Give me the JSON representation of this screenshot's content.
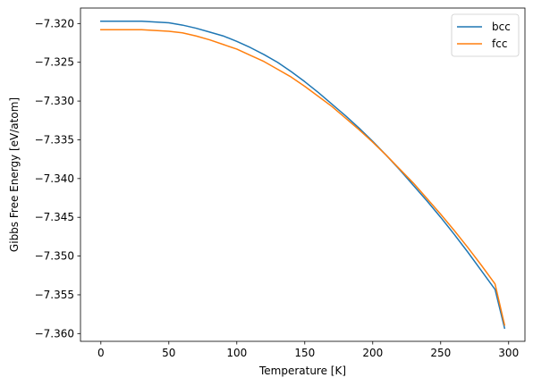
{
  "chart_data": {
    "type": "line",
    "title": "",
    "xlabel": "Temperature [K]",
    "ylabel": "Gibbs Free Energy [eV/atom]",
    "xlim": [
      -15,
      312
    ],
    "ylim": [
      -7.361,
      -7.318
    ],
    "xticks": [
      0,
      50,
      100,
      150,
      200,
      250,
      300
    ],
    "xtick_labels": [
      "0",
      "50",
      "100",
      "150",
      "200",
      "250",
      "300"
    ],
    "yticks": [
      -7.32,
      -7.325,
      -7.33,
      -7.335,
      -7.34,
      -7.345,
      -7.35,
      -7.355,
      -7.36
    ],
    "ytick_labels": [
      "−7.320",
      "−7.325",
      "−7.330",
      "−7.335",
      "−7.340",
      "−7.345",
      "−7.350",
      "−7.355",
      "−7.360"
    ],
    "grid": false,
    "legend_position": "top-right",
    "series": [
      {
        "name": "bcc",
        "color": "#1f77b4",
        "x": [
          0,
          10,
          20,
          30,
          40,
          50,
          60,
          70,
          80,
          90,
          100,
          110,
          120,
          130,
          140,
          150,
          160,
          170,
          180,
          190,
          200,
          210,
          220,
          230,
          240,
          250,
          260,
          270,
          280,
          290,
          297
        ],
        "y": [
          -7.3197,
          -7.3197,
          -7.3197,
          -7.3197,
          -7.3198,
          -7.3199,
          -7.3202,
          -7.3206,
          -7.3211,
          -7.3216,
          -7.3223,
          -7.3231,
          -7.324,
          -7.325,
          -7.3262,
          -7.3275,
          -7.3289,
          -7.3304,
          -7.3319,
          -7.3335,
          -7.3352,
          -7.337,
          -7.3389,
          -7.3409,
          -7.3429,
          -7.345,
          -7.3472,
          -7.3495,
          -7.3519,
          -7.3543,
          -7.3593
        ]
      },
      {
        "name": "fcc",
        "color": "#ff7f0e",
        "x": [
          0,
          10,
          20,
          30,
          40,
          50,
          60,
          70,
          80,
          90,
          100,
          110,
          120,
          130,
          140,
          150,
          160,
          170,
          180,
          190,
          200,
          210,
          220,
          230,
          240,
          250,
          260,
          270,
          280,
          290,
          297
        ],
        "y": [
          -7.3208,
          -7.3208,
          -7.3208,
          -7.3208,
          -7.3209,
          -7.321,
          -7.3212,
          -7.3216,
          -7.3221,
          -7.3227,
          -7.3233,
          -7.3241,
          -7.3249,
          -7.3259,
          -7.3269,
          -7.3281,
          -7.3294,
          -7.3307,
          -7.3322,
          -7.3337,
          -7.3353,
          -7.337,
          -7.3388,
          -7.3406,
          -7.3426,
          -7.3446,
          -7.3467,
          -7.3489,
          -7.3512,
          -7.3536,
          -7.3589
        ]
      }
    ]
  }
}
